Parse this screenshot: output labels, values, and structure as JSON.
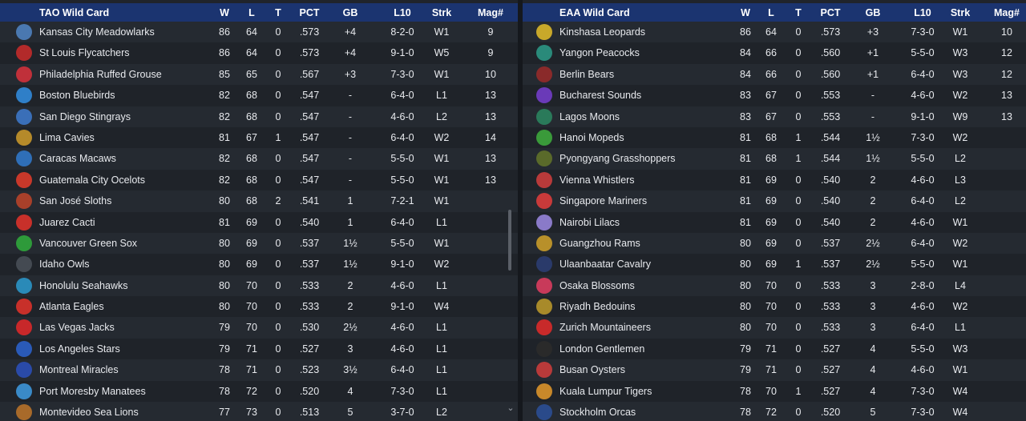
{
  "left": {
    "header": {
      "title": "TAO  Wild Card",
      "w": "W",
      "l": "L",
      "t": "T",
      "pct": "PCT",
      "gb": "GB",
      "l10": "L10",
      "strk": "Strk",
      "mag": "Mag#"
    },
    "rows": [
      {
        "team": "Kansas City Meadowlarks",
        "w": "86",
        "l": "64",
        "t": "0",
        "pct": ".573",
        "gb": "+4",
        "l10": "8-2-0",
        "strk": "W1",
        "mag": "9",
        "color": "#4a78b0"
      },
      {
        "team": "St Louis Flycatchers",
        "w": "86",
        "l": "64",
        "t": "0",
        "pct": ".573",
        "gb": "+4",
        "l10": "9-1-0",
        "strk": "W5",
        "mag": "9",
        "color": "#b22a2a"
      },
      {
        "team": "Philadelphia Ruffed Grouse",
        "w": "85",
        "l": "65",
        "t": "0",
        "pct": ".567",
        "gb": "+3",
        "l10": "7-3-0",
        "strk": "W1",
        "mag": "10",
        "color": "#c0303a"
      },
      {
        "team": "Boston Bluebirds",
        "w": "82",
        "l": "68",
        "t": "0",
        "pct": ".547",
        "gb": "-",
        "l10": "6-4-0",
        "strk": "L1",
        "mag": "13",
        "color": "#2f7fc8"
      },
      {
        "team": "San Diego Stingrays",
        "w": "82",
        "l": "68",
        "t": "0",
        "pct": ".547",
        "gb": "-",
        "l10": "4-6-0",
        "strk": "L2",
        "mag": "13",
        "color": "#3a6fb8"
      },
      {
        "team": "Lima Cavies",
        "w": "81",
        "l": "67",
        "t": "1",
        "pct": ".547",
        "gb": "-",
        "l10": "6-4-0",
        "strk": "W2",
        "mag": "14",
        "color": "#b58a2a"
      },
      {
        "team": "Caracas Macaws",
        "w": "82",
        "l": "68",
        "t": "0",
        "pct": ".547",
        "gb": "-",
        "l10": "5-5-0",
        "strk": "W1",
        "mag": "13",
        "color": "#2f6fb8"
      },
      {
        "team": "Guatemala City Ocelots",
        "w": "82",
        "l": "68",
        "t": "0",
        "pct": ".547",
        "gb": "-",
        "l10": "5-5-0",
        "strk": "W1",
        "mag": "13",
        "color": "#c8382a"
      },
      {
        "team": "San José Sloths",
        "w": "80",
        "l": "68",
        "t": "2",
        "pct": ".541",
        "gb": "1",
        "l10": "7-2-1",
        "strk": "W1",
        "mag": "",
        "color": "#a8402a"
      },
      {
        "team": "Juarez Cacti",
        "w": "81",
        "l": "69",
        "t": "0",
        "pct": ".540",
        "gb": "1",
        "l10": "6-4-0",
        "strk": "L1",
        "mag": "",
        "color": "#c8302a"
      },
      {
        "team": "Vancouver Green Sox",
        "w": "80",
        "l": "69",
        "t": "0",
        "pct": ".537",
        "gb": "1½",
        "l10": "5-5-0",
        "strk": "W1",
        "mag": "",
        "color": "#2e9a3a"
      },
      {
        "team": "Idaho Owls",
        "w": "80",
        "l": "69",
        "t": "0",
        "pct": ".537",
        "gb": "1½",
        "l10": "9-1-0",
        "strk": "W2",
        "mag": "",
        "color": "#444a52"
      },
      {
        "team": "Honolulu Seahawks",
        "w": "80",
        "l": "70",
        "t": "0",
        "pct": ".533",
        "gb": "2",
        "l10": "4-6-0",
        "strk": "L1",
        "mag": "",
        "color": "#2a8ab8"
      },
      {
        "team": "Atlanta Eagles",
        "w": "80",
        "l": "70",
        "t": "0",
        "pct": ".533",
        "gb": "2",
        "l10": "9-1-0",
        "strk": "W4",
        "mag": "",
        "color": "#c8302a"
      },
      {
        "team": "Las Vegas Jacks",
        "w": "79",
        "l": "70",
        "t": "0",
        "pct": ".530",
        "gb": "2½",
        "l10": "4-6-0",
        "strk": "L1",
        "mag": "",
        "color": "#c8282a"
      },
      {
        "team": "Los Angeles Stars",
        "w": "79",
        "l": "71",
        "t": "0",
        "pct": ".527",
        "gb": "3",
        "l10": "4-6-0",
        "strk": "L1",
        "mag": "",
        "color": "#2a5ab8"
      },
      {
        "team": "Montreal Miracles",
        "w": "78",
        "l": "71",
        "t": "0",
        "pct": ".523",
        "gb": "3½",
        "l10": "6-4-0",
        "strk": "L1",
        "mag": "",
        "color": "#2a4aa8"
      },
      {
        "team": "Port Moresby Manatees",
        "w": "78",
        "l": "72",
        "t": "0",
        "pct": ".520",
        "gb": "4",
        "l10": "7-3-0",
        "strk": "L1",
        "mag": "",
        "color": "#3a8ac8"
      },
      {
        "team": "Montevideo Sea Lions",
        "w": "77",
        "l": "73",
        "t": "0",
        "pct": ".513",
        "gb": "5",
        "l10": "3-7-0",
        "strk": "L2",
        "mag": "",
        "color": "#a86a2a"
      }
    ]
  },
  "right": {
    "header": {
      "title": "EAA  Wild Card",
      "w": "W",
      "l": "L",
      "t": "T",
      "pct": "PCT",
      "gb": "GB",
      "l10": "L10",
      "strk": "Strk",
      "mag": "Mag#"
    },
    "rows": [
      {
        "team": "Kinshasa Leopards",
        "w": "86",
        "l": "64",
        "t": "0",
        "pct": ".573",
        "gb": "+3",
        "l10": "7-3-0",
        "strk": "W1",
        "mag": "10",
        "color": "#c8a82a"
      },
      {
        "team": "Yangon Peacocks",
        "w": "84",
        "l": "66",
        "t": "0",
        "pct": ".560",
        "gb": "+1",
        "l10": "5-5-0",
        "strk": "W3",
        "mag": "12",
        "color": "#2a8a7a"
      },
      {
        "team": "Berlin Bears",
        "w": "84",
        "l": "66",
        "t": "0",
        "pct": ".560",
        "gb": "+1",
        "l10": "6-4-0",
        "strk": "W3",
        "mag": "12",
        "color": "#8a2a2a"
      },
      {
        "team": "Bucharest Sounds",
        "w": "83",
        "l": "67",
        "t": "0",
        "pct": ".553",
        "gb": "-",
        "l10": "4-6-0",
        "strk": "W2",
        "mag": "13",
        "color": "#6a3ab8"
      },
      {
        "team": "Lagos Moons",
        "w": "83",
        "l": "67",
        "t": "0",
        "pct": ".553",
        "gb": "-",
        "l10": "9-1-0",
        "strk": "W9",
        "mag": "13",
        "color": "#2a7a5a"
      },
      {
        "team": "Hanoi Mopeds",
        "w": "81",
        "l": "68",
        "t": "1",
        "pct": ".544",
        "gb": "1½",
        "l10": "7-3-0",
        "strk": "W2",
        "mag": "",
        "color": "#3a9a3a"
      },
      {
        "team": "Pyongyang Grasshoppers",
        "w": "81",
        "l": "68",
        "t": "1",
        "pct": ".544",
        "gb": "1½",
        "l10": "5-5-0",
        "strk": "L2",
        "mag": "",
        "color": "#5a6a2a"
      },
      {
        "team": "Vienna Whistlers",
        "w": "81",
        "l": "69",
        "t": "0",
        "pct": ".540",
        "gb": "2",
        "l10": "4-6-0",
        "strk": "L3",
        "mag": "",
        "color": "#b83a3a"
      },
      {
        "team": "Singapore Mariners",
        "w": "81",
        "l": "69",
        "t": "0",
        "pct": ".540",
        "gb": "2",
        "l10": "6-4-0",
        "strk": "L2",
        "mag": "",
        "color": "#c83a3a"
      },
      {
        "team": "Nairobi Lilacs",
        "w": "81",
        "l": "69",
        "t": "0",
        "pct": ".540",
        "gb": "2",
        "l10": "4-6-0",
        "strk": "W1",
        "mag": "",
        "color": "#8a7ac8"
      },
      {
        "team": "Guangzhou Rams",
        "w": "80",
        "l": "69",
        "t": "0",
        "pct": ".537",
        "gb": "2½",
        "l10": "6-4-0",
        "strk": "W2",
        "mag": "",
        "color": "#b8902a"
      },
      {
        "team": "Ulaanbaatar Cavalry",
        "w": "80",
        "l": "69",
        "t": "1",
        "pct": ".537",
        "gb": "2½",
        "l10": "5-5-0",
        "strk": "W1",
        "mag": "",
        "color": "#2a3a6a"
      },
      {
        "team": "Osaka Blossoms",
        "w": "80",
        "l": "70",
        "t": "0",
        "pct": ".533",
        "gb": "3",
        "l10": "2-8-0",
        "strk": "L4",
        "mag": "",
        "color": "#c83a5a"
      },
      {
        "team": "Riyadh Bedouins",
        "w": "80",
        "l": "70",
        "t": "0",
        "pct": ".533",
        "gb": "3",
        "l10": "4-6-0",
        "strk": "W2",
        "mag": "",
        "color": "#a88a2a"
      },
      {
        "team": "Zurich Mountaineers",
        "w": "80",
        "l": "70",
        "t": "0",
        "pct": ".533",
        "gb": "3",
        "l10": "6-4-0",
        "strk": "L1",
        "mag": "",
        "color": "#c82a2a"
      },
      {
        "team": "London Gentlemen",
        "w": "79",
        "l": "71",
        "t": "0",
        "pct": ".527",
        "gb": "4",
        "l10": "5-5-0",
        "strk": "W3",
        "mag": "",
        "color": "#2a2a2a"
      },
      {
        "team": "Busan Oysters",
        "w": "79",
        "l": "71",
        "t": "0",
        "pct": ".527",
        "gb": "4",
        "l10": "4-6-0",
        "strk": "W1",
        "mag": "",
        "color": "#b83a3a"
      },
      {
        "team": "Kuala Lumpur Tigers",
        "w": "78",
        "l": "70",
        "t": "1",
        "pct": ".527",
        "gb": "4",
        "l10": "7-3-0",
        "strk": "W4",
        "mag": "",
        "color": "#c8882a"
      },
      {
        "team": "Stockholm Orcas",
        "w": "78",
        "l": "72",
        "t": "0",
        "pct": ".520",
        "gb": "5",
        "l10": "7-3-0",
        "strk": "W4",
        "mag": "",
        "color": "#2a4a8a"
      }
    ]
  }
}
